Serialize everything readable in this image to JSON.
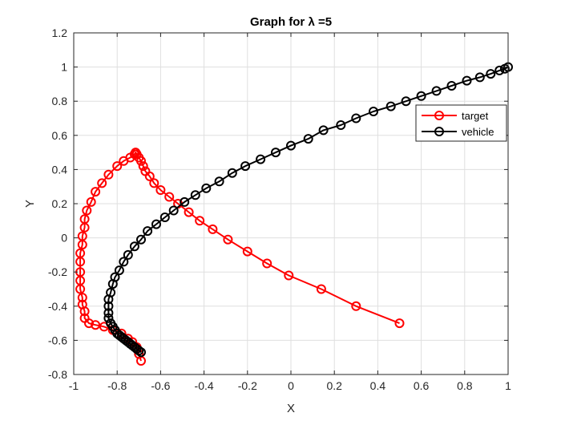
{
  "chart_data": {
    "type": "line",
    "title": "Graph for λ =5",
    "xlabel": "X",
    "ylabel": "Y",
    "xlim": [
      -1,
      1
    ],
    "ylim": [
      -0.8,
      1.2
    ],
    "xticks": [
      -1,
      -0.8,
      -0.6,
      -0.4,
      -0.2,
      0,
      0.2,
      0.4,
      0.6,
      0.8,
      1
    ],
    "yticks": [
      -0.8,
      -0.6,
      -0.4,
      -0.2,
      0,
      0.2,
      0.4,
      0.6,
      0.8,
      1,
      1.2
    ],
    "xtick_labels": [
      "-1",
      "-0.8",
      "-0.6",
      "-0.4",
      "-0.2",
      "0",
      "0.2",
      "0.4",
      "0.6",
      "0.8",
      "1"
    ],
    "ytick_labels": [
      "-0.8",
      "-0.6",
      "-0.4",
      "-0.2",
      "0",
      "0.2",
      "0.4",
      "0.6",
      "0.8",
      "1",
      "1.2"
    ],
    "grid": true,
    "legend_position": "top-right",
    "series": [
      {
        "name": "target",
        "color": "#ff0000",
        "marker": "circle",
        "x": [
          0.5,
          0.3,
          0.14,
          -0.01,
          -0.11,
          -0.2,
          -0.29,
          -0.36,
          -0.42,
          -0.47,
          -0.52,
          -0.56,
          -0.6,
          -0.63,
          -0.65,
          -0.67,
          -0.68,
          -0.69,
          -0.7,
          -0.71,
          -0.715,
          -0.72,
          -0.74,
          -0.77,
          -0.8,
          -0.84,
          -0.87,
          -0.9,
          -0.92,
          -0.94,
          -0.95,
          -0.95,
          -0.96,
          -0.96,
          -0.97,
          -0.97,
          -0.97,
          -0.97,
          -0.97,
          -0.96,
          -0.96,
          -0.95,
          -0.95,
          -0.93,
          -0.9,
          -0.86,
          -0.82,
          -0.78,
          -0.75,
          -0.73,
          -0.71,
          -0.7,
          -0.69
        ],
        "y": [
          -0.5,
          -0.4,
          -0.3,
          -0.22,
          -0.15,
          -0.08,
          -0.01,
          0.05,
          0.1,
          0.15,
          0.2,
          0.24,
          0.28,
          0.32,
          0.36,
          0.39,
          0.42,
          0.45,
          0.47,
          0.49,
          0.5,
          0.49,
          0.47,
          0.45,
          0.42,
          0.37,
          0.32,
          0.27,
          0.21,
          0.16,
          0.11,
          0.06,
          0.01,
          -0.04,
          -0.09,
          -0.14,
          -0.2,
          -0.25,
          -0.3,
          -0.35,
          -0.39,
          -0.43,
          -0.47,
          -0.5,
          -0.51,
          -0.52,
          -0.54,
          -0.56,
          -0.59,
          -0.61,
          -0.64,
          -0.68,
          -0.72
        ]
      },
      {
        "name": "vehicle",
        "color": "#000000",
        "marker": "circle",
        "x": [
          1,
          0.985,
          0.96,
          0.92,
          0.87,
          0.81,
          0.74,
          0.67,
          0.6,
          0.53,
          0.46,
          0.38,
          0.3,
          0.23,
          0.15,
          0.08,
          0.0,
          -0.07,
          -0.14,
          -0.21,
          -0.27,
          -0.33,
          -0.39,
          -0.44,
          -0.49,
          -0.54,
          -0.58,
          -0.62,
          -0.66,
          -0.69,
          -0.72,
          -0.75,
          -0.77,
          -0.79,
          -0.81,
          -0.82,
          -0.83,
          -0.84,
          -0.84,
          -0.84,
          -0.84,
          -0.83,
          -0.82,
          -0.81,
          -0.8,
          -0.79,
          -0.78,
          -0.77,
          -0.76,
          -0.75,
          -0.74,
          -0.73,
          -0.72,
          -0.71,
          -0.7,
          -0.69
        ],
        "y": [
          1.0,
          0.99,
          0.98,
          0.96,
          0.94,
          0.92,
          0.89,
          0.86,
          0.83,
          0.8,
          0.77,
          0.74,
          0.7,
          0.66,
          0.63,
          0.58,
          0.54,
          0.5,
          0.46,
          0.42,
          0.38,
          0.33,
          0.29,
          0.25,
          0.21,
          0.16,
          0.12,
          0.08,
          0.04,
          -0.01,
          -0.05,
          -0.1,
          -0.14,
          -0.19,
          -0.23,
          -0.27,
          -0.32,
          -0.36,
          -0.4,
          -0.44,
          -0.47,
          -0.5,
          -0.52,
          -0.54,
          -0.56,
          -0.57,
          -0.58,
          -0.59,
          -0.6,
          -0.61,
          -0.62,
          -0.63,
          -0.64,
          -0.65,
          -0.66,
          -0.67
        ]
      }
    ]
  }
}
